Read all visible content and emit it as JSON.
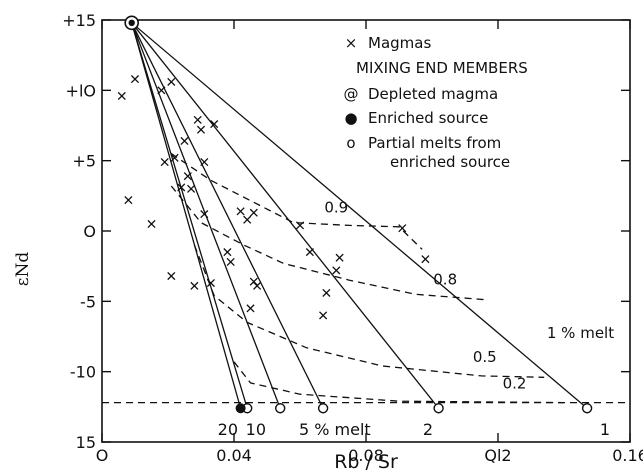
{
  "chart_data": {
    "type": "scatter",
    "xlabel": "Rb / Sr",
    "ylabel": "εNd",
    "xlim": [
      0,
      0.16
    ],
    "ylim": [
      -15,
      15
    ],
    "grid": false,
    "legend_placement": "top-right",
    "x_ticks": [
      {
        "value": 0,
        "label": "O"
      },
      {
        "value": 0.04,
        "label": "0.04"
      },
      {
        "value": 0.08,
        "label": "0.08"
      },
      {
        "value": 0.12,
        "label": "Ql2"
      },
      {
        "value": 0.16,
        "label": "0.16"
      }
    ],
    "y_ticks": [
      {
        "value": 15,
        "label": "+15"
      },
      {
        "value": 10,
        "label": "+lO"
      },
      {
        "value": 5,
        "label": "+5"
      },
      {
        "value": 0,
        "label": "O"
      },
      {
        "value": -5,
        "label": "-5"
      },
      {
        "value": -10,
        "label": "-10"
      },
      {
        "value": -15,
        "label": "15"
      }
    ],
    "legend": {
      "items": [
        {
          "marker": "×",
          "label": "Magmas"
        },
        {
          "marker": "",
          "label": "MIXING END MEMBERS"
        },
        {
          "marker": "@",
          "label": "Depleted magma"
        },
        {
          "marker": "●",
          "label": "Enriched source"
        },
        {
          "marker": "o",
          "label": "Partial melts from"
        },
        {
          "marker": "",
          "label": "enriched source"
        }
      ]
    },
    "end_members": {
      "depleted_magma": {
        "x": 0.009,
        "y": 14.8
      },
      "enriched_source": {
        "x": 0.042,
        "y": -12.6
      },
      "partial_melts": [
        {
          "label": "20",
          "x": 0.044,
          "y": -12.6
        },
        {
          "label": "10",
          "x": 0.054,
          "y": -12.6
        },
        {
          "label": "5 % melt",
          "x": 0.067,
          "y": -12.6
        },
        {
          "label": "2",
          "x": 0.102,
          "y": -12.6
        },
        {
          "label": "1",
          "x": 0.147,
          "y": -12.6
        }
      ]
    },
    "mixing_curves": {
      "labels": [
        {
          "text": "0.9",
          "x": 0.071,
          "y": 1.3
        },
        {
          "text": "0.8",
          "x": 0.104,
          "y": -3.8
        },
        {
          "text": "0.5",
          "x": 0.116,
          "y": -9.3
        },
        {
          "text": "0.2",
          "x": 0.125,
          "y": -11.2
        },
        {
          "text": "1 % melt",
          "x": 0.145,
          "y": -7.6
        }
      ],
      "series": [
        {
          "name": "0.9",
          "points": [
            [
              0.021,
              5.5
            ],
            [
              0.033,
              3.6
            ],
            [
              0.048,
              1.8
            ],
            [
              0.058,
              0.6
            ],
            [
              0.075,
              0.4
            ],
            [
              0.09,
              0.3
            ],
            [
              0.097,
              -1.3
            ]
          ]
        },
        {
          "name": "0.8",
          "points": [
            [
              0.021,
              3.2
            ],
            [
              0.03,
              0.6
            ],
            [
              0.043,
              -1.0
            ],
            [
              0.055,
              -2.3
            ],
            [
              0.075,
              -3.5
            ],
            [
              0.095,
              -4.5
            ],
            [
              0.117,
              -4.9
            ]
          ]
        },
        {
          "name": "0.5",
          "points": [
            [
              0.028,
              -1.0
            ],
            [
              0.034,
              -4.6
            ],
            [
              0.044,
              -6.5
            ],
            [
              0.062,
              -8.3
            ],
            [
              0.085,
              -9.6
            ],
            [
              0.115,
              -10.3
            ],
            [
              0.134,
              -10.4
            ]
          ]
        },
        {
          "name": "0.2",
          "points": [
            [
              0.04,
              -9.3
            ],
            [
              0.045,
              -10.8
            ],
            [
              0.06,
              -11.6
            ],
            [
              0.09,
              -12.1
            ],
            [
              0.14,
              -12.2
            ]
          ]
        },
        {
          "name": "",
          "points": [
            [
              0.0,
              -12.2
            ],
            [
              0.16,
              -12.2
            ]
          ]
        }
      ]
    },
    "magmas": [
      {
        "x": 0.006,
        "y": 9.6
      },
      {
        "x": 0.01,
        "y": 10.8
      },
      {
        "x": 0.008,
        "y": 2.2
      },
      {
        "x": 0.015,
        "y": 0.5
      },
      {
        "x": 0.018,
        "y": 10.0
      },
      {
        "x": 0.021,
        "y": 10.6
      },
      {
        "x": 0.019,
        "y": 4.9
      },
      {
        "x": 0.022,
        "y": 5.2
      },
      {
        "x": 0.025,
        "y": 6.4
      },
      {
        "x": 0.024,
        "y": 3.1
      },
      {
        "x": 0.027,
        "y": 3.0
      },
      {
        "x": 0.026,
        "y": 3.9
      },
      {
        "x": 0.029,
        "y": 7.9
      },
      {
        "x": 0.03,
        "y": 7.2
      },
      {
        "x": 0.034,
        "y": 7.6
      },
      {
        "x": 0.031,
        "y": 4.9
      },
      {
        "x": 0.031,
        "y": 1.2
      },
      {
        "x": 0.021,
        "y": -3.2
      },
      {
        "x": 0.028,
        "y": -3.9
      },
      {
        "x": 0.033,
        "y": -3.7
      },
      {
        "x": 0.038,
        "y": -1.5
      },
      {
        "x": 0.039,
        "y": -2.2
      },
      {
        "x": 0.042,
        "y": 1.4
      },
      {
        "x": 0.044,
        "y": 0.8
      },
      {
        "x": 0.046,
        "y": 1.3
      },
      {
        "x": 0.046,
        "y": -3.6
      },
      {
        "x": 0.047,
        "y": -3.9
      },
      {
        "x": 0.045,
        "y": -5.5
      },
      {
        "x": 0.06,
        "y": 0.4
      },
      {
        "x": 0.063,
        "y": -1.5
      },
      {
        "x": 0.068,
        "y": -4.4
      },
      {
        "x": 0.067,
        "y": -6.0
      },
      {
        "x": 0.072,
        "y": -1.9
      },
      {
        "x": 0.071,
        "y": -2.8
      },
      {
        "x": 0.091,
        "y": 0.2
      },
      {
        "x": 0.098,
        "y": -2.0
      }
    ]
  }
}
